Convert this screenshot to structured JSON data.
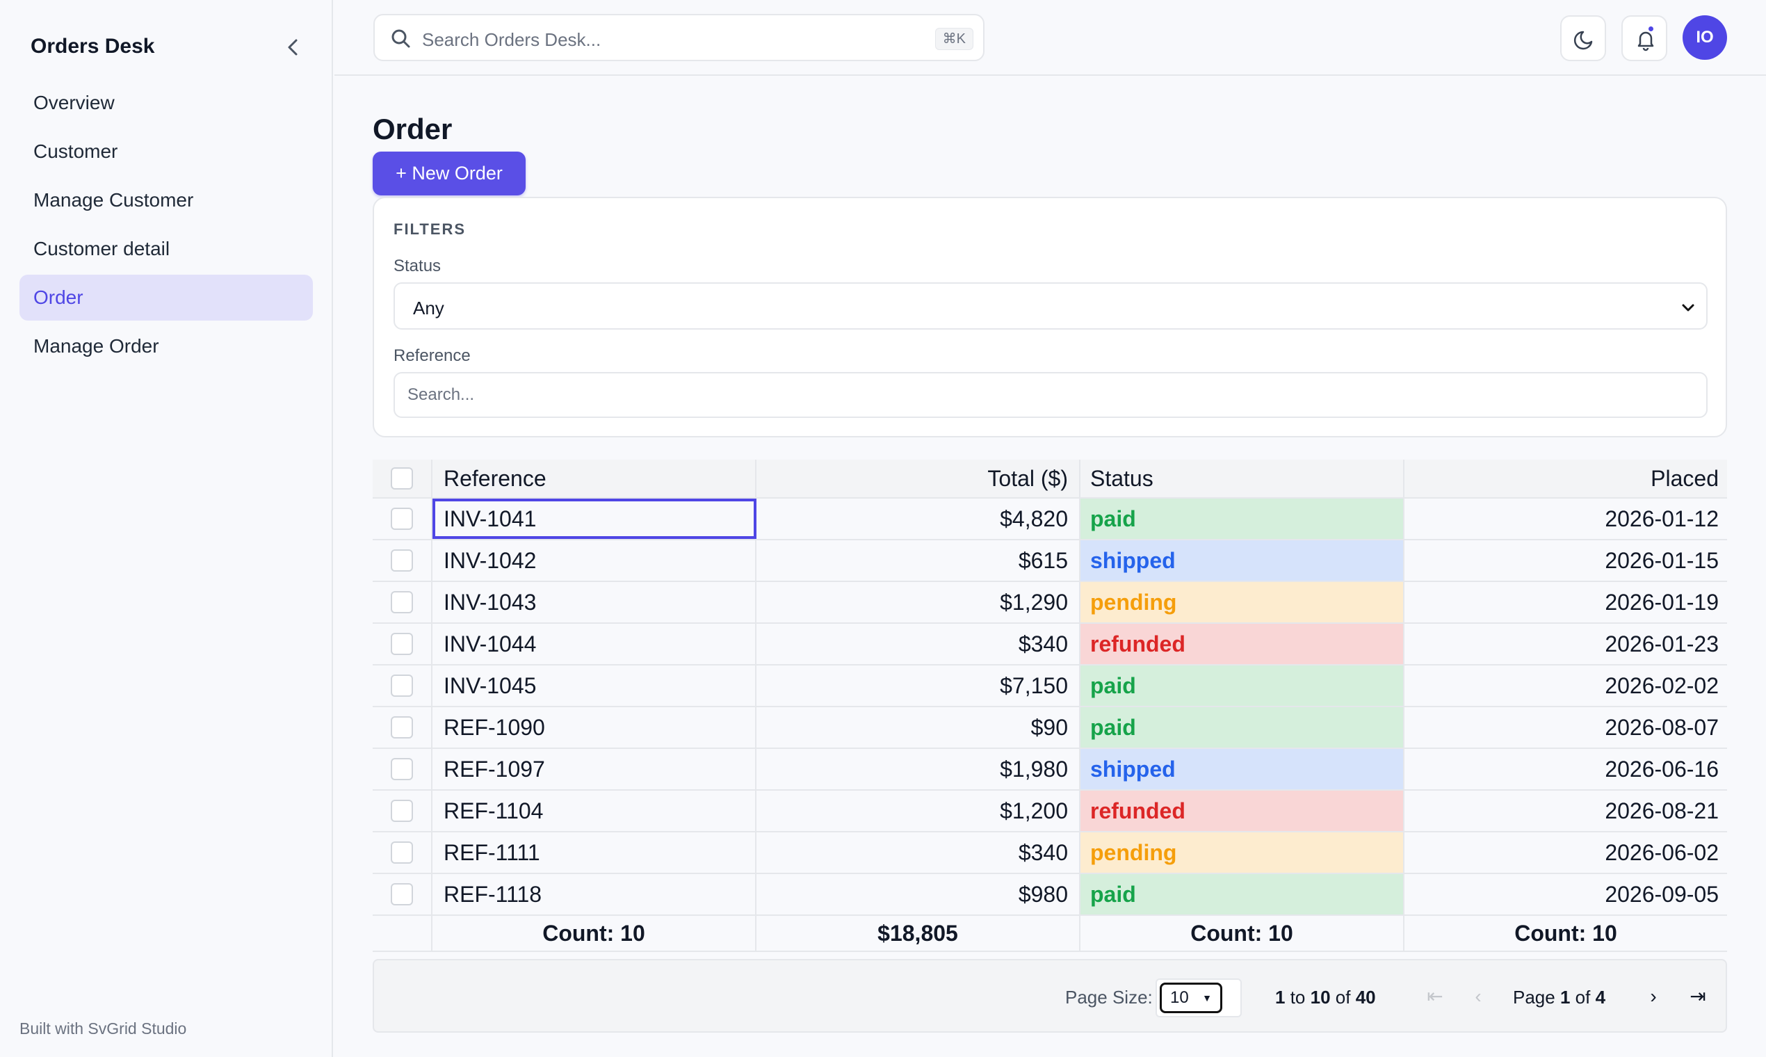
{
  "app": {
    "brand": "Orders Desk",
    "footer": "Built with SvGrid Studio"
  },
  "sidebar": {
    "items": [
      {
        "label": "Overview",
        "active": false
      },
      {
        "label": "Customer",
        "active": false
      },
      {
        "label": "Manage Customer",
        "active": false
      },
      {
        "label": "Customer detail",
        "active": false
      },
      {
        "label": "Order",
        "active": true
      },
      {
        "label": "Manage Order",
        "active": false
      }
    ]
  },
  "header": {
    "search_placeholder": "Search Orders Desk...",
    "shortcut": "⌘K",
    "avatar_initials": "IO"
  },
  "page": {
    "title": "Order",
    "new_button": "+ New Order"
  },
  "filters": {
    "title": "FILTERS",
    "status_label": "Status",
    "status_value": "Any",
    "reference_label": "Reference",
    "reference_placeholder": "Search..."
  },
  "table": {
    "columns": {
      "reference": "Reference",
      "total": "Total ($)",
      "status": "Status",
      "placed": "Placed"
    },
    "rows": [
      {
        "reference": "INV-1041",
        "total": "$4,820",
        "status": "paid",
        "placed": "2026-01-12"
      },
      {
        "reference": "INV-1042",
        "total": "$615",
        "status": "shipped",
        "placed": "2026-01-15"
      },
      {
        "reference": "INV-1043",
        "total": "$1,290",
        "status": "pending",
        "placed": "2026-01-19"
      },
      {
        "reference": "INV-1044",
        "total": "$340",
        "status": "refunded",
        "placed": "2026-01-23"
      },
      {
        "reference": "INV-1045",
        "total": "$7,150",
        "status": "paid",
        "placed": "2026-02-02"
      },
      {
        "reference": "REF-1090",
        "total": "$90",
        "status": "paid",
        "placed": "2026-08-07"
      },
      {
        "reference": "REF-1097",
        "total": "$1,980",
        "status": "shipped",
        "placed": "2026-06-16"
      },
      {
        "reference": "REF-1104",
        "total": "$1,200",
        "status": "refunded",
        "placed": "2026-08-21"
      },
      {
        "reference": "REF-1111",
        "total": "$340",
        "status": "pending",
        "placed": "2026-06-02"
      },
      {
        "reference": "REF-1118",
        "total": "$980",
        "status": "paid",
        "placed": "2026-09-05"
      }
    ],
    "footer": {
      "reference": "Count: 10",
      "total": "$18,805",
      "status": "Count: 10",
      "placed": "Count: 10"
    }
  },
  "pager": {
    "page_size_label": "Page Size:",
    "page_size": "10",
    "range_from": "1",
    "range_to_word": "to",
    "range_to": "10",
    "range_of_word": "of",
    "range_total": "40",
    "page_word": "Page",
    "page_current": "1",
    "page_of_word": "of",
    "page_total": "4"
  },
  "colors": {
    "accent": "#4f46e5",
    "paid": "#16a34a",
    "shipped": "#2563eb",
    "pending": "#f59e0b",
    "refunded": "#dc2626"
  }
}
